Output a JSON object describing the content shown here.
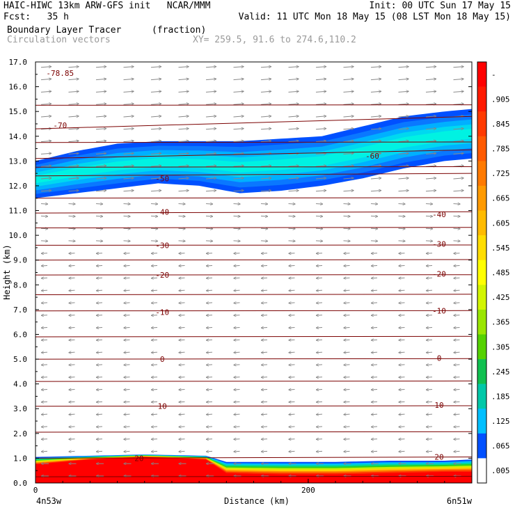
{
  "header": {
    "line1_left": "HAIC-HIWC 13km ARW-GFS init   NCAR/MMM",
    "line1_right": "Init: 00 UTC Sun 17 May 15",
    "line2_left": "Fcst:   35 h",
    "line2_right": "Valid: 11 UTC Mon 18 May 15 (08 LST Mon 18 May 15)",
    "field_name": "Boundary Layer Tracer",
    "field_units": "(fraction)",
    "vector_name": "Circulation vectors",
    "xy_text": "XY= 259.5, 91.6 to 274.6,110.2"
  },
  "chart_data": {
    "type": "heatmap",
    "title": "Boundary Layer Tracer",
    "xlabel": "Distance (km)",
    "ylabel": "Height (km)",
    "xlim": [
      0,
      320
    ],
    "ylim": [
      0,
      17
    ],
    "x_ticks": [
      0,
      200
    ],
    "x_tick_labels": [
      "0",
      "200"
    ],
    "x_end_labels": [
      "4n53w",
      "6n51w"
    ],
    "y_ticks": [
      0,
      1,
      2,
      3,
      4,
      5,
      6,
      7,
      8,
      9,
      10,
      11,
      12,
      13,
      14,
      15,
      16,
      17
    ],
    "y_tick_labels": [
      "0.0",
      "1.0",
      "2.0",
      "3.0",
      "4.0",
      "5.0",
      "6.0",
      "7.0",
      "8.0",
      "9.0",
      "10.0",
      "11.0",
      "12.0",
      "13.0",
      "14.0",
      "15.0",
      "16.0",
      "17.0"
    ],
    "colorbar": {
      "labels": [
        "-",
        ".905",
        ".845",
        ".785",
        ".725",
        ".665",
        ".605",
        ".545",
        ".485",
        ".425",
        ".365",
        ".305",
        ".245",
        ".185",
        ".125",
        ".065",
        ".005"
      ],
      "colors": [
        "#ff0000",
        "#ff1a00",
        "#ff3a00",
        "#ff5a00",
        "#ff7a00",
        "#ff9a00",
        "#ffbb00",
        "#ffdd00",
        "#ffff00",
        "#d2f500",
        "#9ae600",
        "#55d200",
        "#10c050",
        "#00c8a8",
        "#00bfff",
        "#0050ff",
        "#ffffff"
      ]
    },
    "upper_layer": {
      "x": [
        0,
        30,
        60,
        90,
        120,
        150,
        180,
        210,
        240,
        270,
        300,
        320
      ],
      "bottom": [
        11.5,
        11.7,
        11.9,
        12.1,
        12.0,
        11.7,
        11.8,
        12.0,
        12.3,
        12.7,
        13.0,
        13.1
      ],
      "top": [
        13.0,
        13.4,
        13.7,
        13.8,
        13.8,
        13.8,
        13.9,
        14.0,
        14.4,
        14.8,
        15.0,
        15.1
      ],
      "core_value": 0.2
    },
    "lower_layer": {
      "x": [
        0,
        40,
        80,
        125,
        140,
        180,
        220,
        260,
        300,
        320
      ],
      "top": [
        1.05,
        1.1,
        1.15,
        1.1,
        0.85,
        0.85,
        0.85,
        0.9,
        0.9,
        0.95
      ],
      "core_top": [
        0.75,
        0.95,
        1.05,
        0.95,
        0.4,
        0.35,
        0.35,
        0.4,
        0.45,
        0.45
      ],
      "core_value": 0.95
    },
    "temperature_contours": {
      "values": [
        20,
        10,
        0,
        -10,
        -20,
        -30,
        -40,
        -50,
        -60,
        -70
      ],
      "heights": [
        1.0,
        3.1,
        5.0,
        6.95,
        8.4,
        9.6,
        10.9,
        12.4,
        13.1,
        14.3
      ],
      "slopes": [
        0.05,
        0.02,
        0.02,
        0.01,
        0.01,
        0.01,
        0.05,
        0.1,
        0.35,
        0.5
      ],
      "extra_lines": [
        0.25,
        2.05,
        4.1,
        5.9,
        7.6,
        9.0,
        10.3,
        11.5,
        12.75,
        13.75,
        15.25
      ],
      "min_label": "-78.85",
      "labeled": [
        {
          "value": 20,
          "x": 76,
          "y": 1.0
        },
        {
          "value": 20,
          "x": 296,
          "y": 1.05
        },
        {
          "value": 10,
          "x": 93,
          "y": 3.1
        },
        {
          "value": 10,
          "x": 296,
          "y": 3.15
        },
        {
          "value": 0,
          "x": 93,
          "y": 5.0
        },
        {
          "value": 0,
          "x": 296,
          "y": 5.05
        },
        {
          "value": -10,
          "x": 93,
          "y": 6.9
        },
        {
          "value": -10,
          "x": 296,
          "y": 6.95
        },
        {
          "value": -20,
          "x": 93,
          "y": 8.4
        },
        {
          "value": -20,
          "x": 296,
          "y": 8.45
        },
        {
          "value": -30,
          "x": 93,
          "y": 9.6
        },
        {
          "value": -30,
          "x": 296,
          "y": 9.65
        },
        {
          "value": -40,
          "x": 93,
          "y": 10.95
        },
        {
          "value": -40,
          "x": 296,
          "y": 10.85
        },
        {
          "value": -50,
          "x": 93,
          "y": 12.3
        },
        {
          "value": -60,
          "x": 247,
          "y": 13.2
        },
        {
          "value": -70,
          "x": 18,
          "y": 14.45
        }
      ]
    }
  }
}
